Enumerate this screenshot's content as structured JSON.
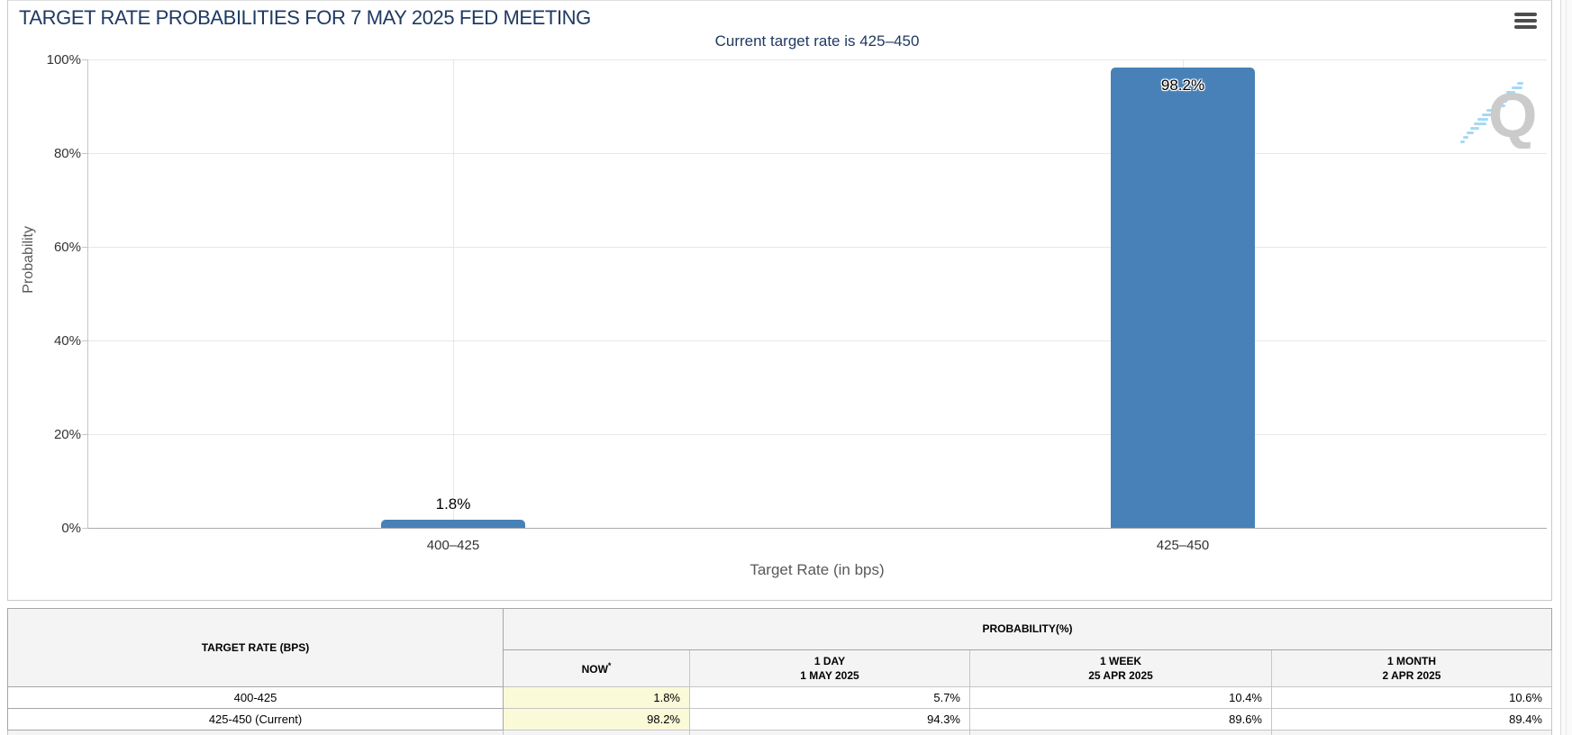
{
  "header": {
    "title": "TARGET RATE PROBABILITIES FOR 7 MAY 2025 FED MEETING",
    "menu_icon": "hamburger-menu-icon"
  },
  "chart_data": {
    "type": "bar",
    "title": "TARGET RATE PROBABILITIES FOR 7 MAY 2025 FED MEETING",
    "subtitle": "Current target rate is 425–450",
    "categories": [
      "400–425",
      "425–450"
    ],
    "values": [
      1.8,
      98.2
    ],
    "value_labels": [
      "1.8%",
      "98.2%"
    ],
    "xlabel": "Target Rate (in bps)",
    "ylabel": "Probability",
    "ylim": [
      0,
      100
    ],
    "yticks": [
      "0%",
      "20%",
      "40%",
      "60%",
      "80%",
      "100%"
    ],
    "grid": true,
    "legend": "none",
    "bar_color": "#4781b7",
    "watermark": "Q"
  },
  "table": {
    "headers": {
      "target_rate": "TARGET RATE (BPS)",
      "probability_group": "PROBABILITY(%)",
      "now": "NOW",
      "now_footnote_marker": "*",
      "day_label": "1 DAY",
      "day_date": "1 MAY 2025",
      "week_label": "1 WEEK",
      "week_date": "25 APR 2025",
      "month_label": "1 MONTH",
      "month_date": "2 APR 2025"
    },
    "rows": [
      {
        "target_rate": "400-425",
        "values": [
          "1.8%",
          "5.7%",
          "10.4%",
          "10.6%"
        ]
      },
      {
        "target_rate": "425-450 (Current)",
        "values": [
          "98.2%",
          "94.3%",
          "89.6%",
          "89.4%"
        ]
      }
    ],
    "now_highlight_color": "#fafad9"
  },
  "colors": {
    "title_navy": "#1f3a63",
    "bar_blue": "#4781b7",
    "header_gray": "#f4f4f4",
    "watermark_gray": "#cbcbcb",
    "watermark_blue": "#a5d9f5"
  }
}
